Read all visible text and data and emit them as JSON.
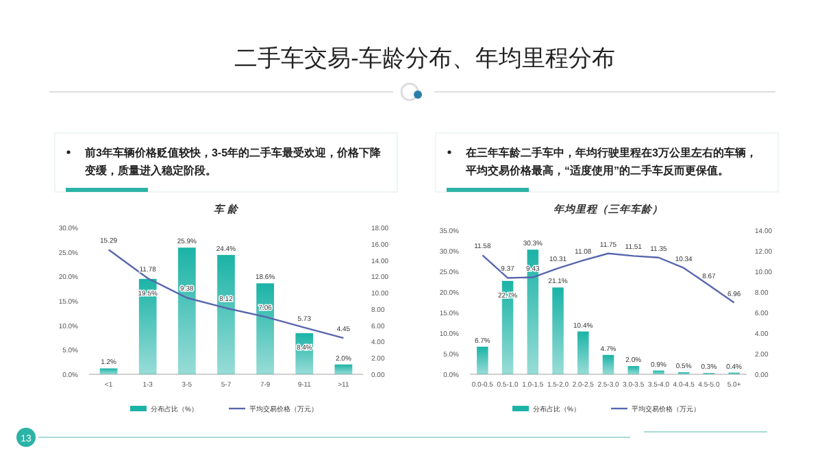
{
  "chart_data": [
    {
      "type": "bar",
      "title": "车 龄",
      "categories": [
        "<1",
        "1-3",
        "3-5",
        "5-7",
        "7-9",
        "9-11",
        ">11"
      ],
      "series": [
        {
          "name": "分布占比（%）",
          "color": "#1bb3a6",
          "values": [
            1.2,
            19.5,
            25.9,
            24.4,
            18.6,
            8.4,
            2.0
          ],
          "value_labels": [
            "1.2%",
            "19.5%",
            "25.9%",
            "24.4%",
            "18.6%",
            "8.4%",
            "2.0%"
          ]
        },
        {
          "name": "平均交易价格（万元）",
          "type": "line",
          "axis": "y2",
          "color": "#5865ad",
          "values": [
            15.29,
            11.78,
            9.38,
            8.12,
            7.06,
            5.73,
            4.45
          ],
          "value_labels": [
            "15.29",
            "11.78",
            "9.38",
            "8.12",
            "7.06",
            "5.73",
            "4.45"
          ]
        }
      ],
      "ylim": [
        0,
        30
      ],
      "yticks": [
        {
          "value": 0,
          "label": "0.0%"
        },
        {
          "value": 5,
          "label": "5.0%"
        },
        {
          "value": 10,
          "label": "10.0%"
        },
        {
          "value": 15,
          "label": "15.0%"
        },
        {
          "value": 20,
          "label": "20.0%"
        },
        {
          "value": 25,
          "label": "25.0%"
        },
        {
          "value": 30,
          "label": "30.0%"
        }
      ],
      "y2lim": [
        0,
        18
      ],
      "y2ticks": [
        {
          "value": 0,
          "label": "0.00"
        },
        {
          "value": 2,
          "label": "2.00"
        },
        {
          "value": 4,
          "label": "4.00"
        },
        {
          "value": 6,
          "label": "6.00"
        },
        {
          "value": 8,
          "label": "8.00"
        },
        {
          "value": 10,
          "label": "10.00"
        },
        {
          "value": 12,
          "label": "12.00"
        },
        {
          "value": 14,
          "label": "14.00"
        },
        {
          "value": 16,
          "label": "16.00"
        },
        {
          "value": 18,
          "label": "18.00"
        }
      ],
      "legend": "bottom",
      "annotations": [
        "二手车交易-车龄分布、年均里程分布",
        "前3年车辆价格贬值较快，3-5年的二手车最受欢迎，价格下降变缓，质量进入稳定阶段。",
        "13"
      ]
    },
    {
      "type": "bar",
      "title": "年均里程（三年车龄）",
      "categories": [
        "0.0-0.5",
        "0.5-1.0",
        "1.0-1.5",
        "1.5-2.0",
        "2.0-2.5",
        "2.5-3.0",
        "3.0-3.5",
        "3.5-4.0",
        "4.0-4.5",
        "4.5-5.0",
        "5.0+"
      ],
      "series": [
        {
          "name": "分布占比（%）",
          "color": "#1bb3a6",
          "values": [
            6.7,
            22.7,
            30.3,
            21.1,
            10.4,
            4.7,
            2.0,
            0.9,
            0.5,
            0.3,
            0.4
          ],
          "value_labels": [
            "6.7%",
            "22.7%",
            "30.3%",
            "21.1%",
            "10.4%",
            "4.7%",
            "2.0%",
            "0.9%",
            "0.5%",
            "0.3%",
            "0.4%"
          ]
        },
        {
          "name": "平均交易价格（万元）",
          "type": "line",
          "axis": "y2",
          "color": "#5865ad",
          "values": [
            11.58,
            9.37,
            9.43,
            10.31,
            11.08,
            11.75,
            11.51,
            11.35,
            10.34,
            8.67,
            6.96
          ],
          "value_labels": [
            "11.58",
            "9.37",
            "9.43",
            "10.31",
            "11.08",
            "11.75",
            "11.51",
            "11.35",
            "10.34",
            "8.67",
            "6.96"
          ]
        }
      ],
      "ylim": [
        0,
        35
      ],
      "yticks": [
        {
          "value": 0,
          "label": "0.0%"
        },
        {
          "value": 5,
          "label": "5.0%"
        },
        {
          "value": 10,
          "label": "10.0%"
        },
        {
          "value": 15,
          "label": "15.0%"
        },
        {
          "value": 20,
          "label": "20.0%"
        },
        {
          "value": 25,
          "label": "25.0%"
        },
        {
          "value": 30,
          "label": "30.0%"
        },
        {
          "value": 35,
          "label": "35.0%"
        }
      ],
      "y2lim": [
        0,
        14
      ],
      "y2ticks": [
        {
          "value": 0,
          "label": "0.00"
        },
        {
          "value": 2,
          "label": "2.00"
        },
        {
          "value": 4,
          "label": "4.00"
        },
        {
          "value": 6,
          "label": "6.00"
        },
        {
          "value": 8,
          "label": "8.00"
        },
        {
          "value": 10,
          "label": "10.00"
        },
        {
          "value": 12,
          "label": "12.00"
        },
        {
          "value": 14,
          "label": "14.00"
        }
      ],
      "legend": "bottom",
      "annotations": [
        "在三年车龄二手车中，年均行驶里程在3万公里左右的车辆，平均交易价格最高，“适度使用”的二手车反而更保值。"
      ]
    }
  ]
}
